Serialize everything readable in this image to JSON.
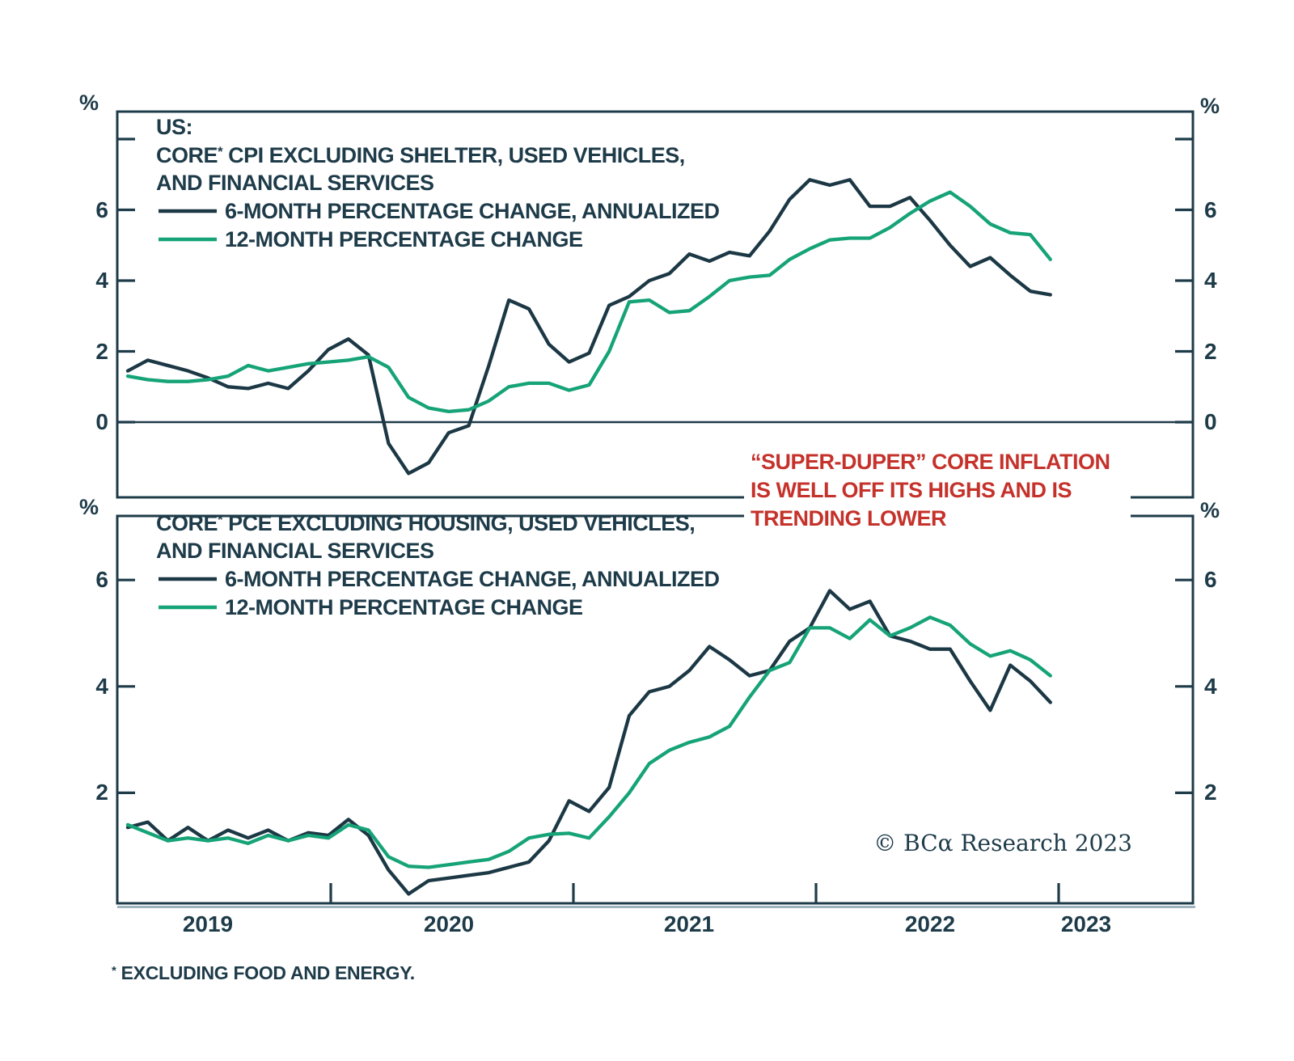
{
  "colors": {
    "text": "#1e3b49",
    "axis": "#1e3b49",
    "axis_shadow": "#9fb5bf",
    "navy_line": "#1c3845",
    "green_line": "#15a377",
    "red": "#c5322b",
    "background": "#ffffff"
  },
  "axes": {
    "percent": "%",
    "x_labels": [
      "2019",
      "2020",
      "2021",
      "2022",
      "2023"
    ]
  },
  "top_panel": {
    "region_label": "US:",
    "title_core": "CORE",
    "title_asterisk": "*",
    "title_rest": " CPI EXCLUDING SHELTER, USED VEHICLES,",
    "title_line2": "AND FINANCIAL SERVICES",
    "legend_6m": "6-MONTH PERCENTAGE CHANGE, ANNUALIZED",
    "legend_12m": "12-MONTH PERCENTAGE CHANGE"
  },
  "bottom_panel": {
    "title_core": "CORE",
    "title_asterisk": "*",
    "title_rest": " PCE EXCLUDING HOUSING, USED VEHICLES,",
    "title_line2": "AND FINANCIAL SERVICES",
    "legend_6m": "6-MONTH PERCENTAGE CHANGE, ANNUALIZED",
    "legend_12m": "12-MONTH PERCENTAGE CHANGE"
  },
  "annotation": {
    "line1": "“SUPER-DUPER” CORE INFLATION",
    "line2": "IS WELL OFF ITS HIGHS AND IS",
    "line3": "TRENDING LOWER"
  },
  "footnote": {
    "asterisk": "*",
    "text": " EXCLUDING FOOD AND ENERGY."
  },
  "copyright": "© BCα Research 2023",
  "chart_data": [
    {
      "type": "line",
      "panel": "top",
      "title": "US: CORE* CPI EXCLUDING SHELTER, USED VEHICLES, AND FINANCIAL SERVICES",
      "ylabel": "%",
      "ylim": [
        -2.1,
        8.8
      ],
      "y_ticks_labeled": [
        6,
        4,
        2,
        0
      ],
      "y_ticks_unlabeled": [
        8
      ],
      "zero_line": true,
      "grid": false,
      "legend_position": "top-left",
      "x_monthly": [
        "2019-03",
        "2019-04",
        "2019-05",
        "2019-06",
        "2019-07",
        "2019-08",
        "2019-09",
        "2019-10",
        "2019-11",
        "2019-12",
        "2020-01",
        "2020-02",
        "2020-03",
        "2020-04",
        "2020-05",
        "2020-06",
        "2020-07",
        "2020-08",
        "2020-09",
        "2020-10",
        "2020-11",
        "2020-12",
        "2021-01",
        "2021-02",
        "2021-03",
        "2021-04",
        "2021-05",
        "2021-06",
        "2021-07",
        "2021-08",
        "2021-09",
        "2021-10",
        "2021-11",
        "2021-12",
        "2022-01",
        "2022-02",
        "2022-03",
        "2022-04",
        "2022-05",
        "2022-06",
        "2022-07",
        "2022-08",
        "2022-09",
        "2022-10",
        "2022-11",
        "2022-12",
        "2023-01"
      ],
      "series": [
        {
          "name": "6-MONTH PERCENTAGE CHANGE, ANNUALIZED",
          "color": "navy",
          "values": [
            1.45,
            1.75,
            1.6,
            1.45,
            1.25,
            1.0,
            0.95,
            1.1,
            0.95,
            1.45,
            2.05,
            2.35,
            1.9,
            -0.6,
            -1.45,
            -1.15,
            -0.3,
            -0.1,
            1.6,
            3.45,
            3.2,
            2.2,
            1.7,
            1.95,
            3.3,
            3.55,
            4.0,
            4.2,
            4.75,
            4.55,
            4.8,
            4.7,
            5.4,
            6.3,
            6.85,
            6.7,
            6.85,
            6.1,
            6.1,
            6.35,
            5.7,
            5.0,
            4.4,
            4.65,
            4.15,
            3.7,
            3.6
          ]
        },
        {
          "name": "12-MONTH PERCENTAGE CHANGE",
          "color": "green",
          "values": [
            1.3,
            1.2,
            1.15,
            1.15,
            1.2,
            1.3,
            1.6,
            1.45,
            1.55,
            1.65,
            1.7,
            1.75,
            1.85,
            1.55,
            0.7,
            0.4,
            0.3,
            0.35,
            0.6,
            1.0,
            1.1,
            1.1,
            0.9,
            1.05,
            2.0,
            3.4,
            3.45,
            3.1,
            3.15,
            3.55,
            4.0,
            4.1,
            4.15,
            4.6,
            4.9,
            5.15,
            5.2,
            5.2,
            5.5,
            5.9,
            6.25,
            6.5,
            6.1,
            5.6,
            5.35,
            5.3,
            4.6
          ]
        }
      ]
    },
    {
      "type": "line",
      "panel": "bottom",
      "title": "CORE* PCE EXCLUDING HOUSING, USED VEHICLES, AND FINANCIAL SERVICES",
      "ylabel": "%",
      "ylim": [
        0,
        7.2
      ],
      "y_ticks_labeled": [
        6,
        4,
        2
      ],
      "y_ticks_unlabeled": [],
      "zero_line": false,
      "grid": false,
      "legend_position": "top-left",
      "x_monthly": [
        "2019-03",
        "2019-04",
        "2019-05",
        "2019-06",
        "2019-07",
        "2019-08",
        "2019-09",
        "2019-10",
        "2019-11",
        "2019-12",
        "2020-01",
        "2020-02",
        "2020-03",
        "2020-04",
        "2020-05",
        "2020-06",
        "2020-07",
        "2020-08",
        "2020-09",
        "2020-10",
        "2020-11",
        "2020-12",
        "2021-01",
        "2021-02",
        "2021-03",
        "2021-04",
        "2021-05",
        "2021-06",
        "2021-07",
        "2021-08",
        "2021-09",
        "2021-10",
        "2021-11",
        "2021-12",
        "2022-01",
        "2022-02",
        "2022-03",
        "2022-04",
        "2022-05",
        "2022-06",
        "2022-07",
        "2022-08",
        "2022-09",
        "2022-10",
        "2022-11",
        "2022-12",
        "2023-01"
      ],
      "series": [
        {
          "name": "6-MONTH PERCENTAGE CHANGE, ANNUALIZED",
          "color": "navy",
          "values": [
            1.35,
            1.45,
            1.1,
            1.35,
            1.1,
            1.3,
            1.15,
            1.3,
            1.1,
            1.25,
            1.2,
            1.5,
            1.2,
            0.55,
            0.1,
            0.35,
            0.4,
            0.45,
            0.5,
            0.6,
            0.7,
            1.1,
            1.85,
            1.65,
            2.1,
            3.45,
            3.9,
            4.0,
            4.3,
            4.75,
            4.5,
            4.2,
            4.3,
            4.85,
            5.1,
            5.8,
            5.45,
            5.6,
            4.95,
            4.85,
            4.7,
            4.7,
            4.1,
            3.55,
            4.4,
            4.1,
            3.7
          ]
        },
        {
          "name": "12-MONTH PERCENTAGE CHANGE",
          "color": "green",
          "values": [
            1.4,
            1.25,
            1.1,
            1.15,
            1.1,
            1.15,
            1.05,
            1.2,
            1.1,
            1.2,
            1.15,
            1.4,
            1.3,
            0.8,
            0.62,
            0.6,
            0.65,
            0.7,
            0.75,
            0.9,
            1.15,
            1.22,
            1.24,
            1.15,
            1.55,
            2.0,
            2.55,
            2.8,
            2.95,
            3.05,
            3.25,
            3.8,
            4.3,
            4.45,
            5.1,
            5.1,
            4.9,
            5.25,
            4.95,
            5.1,
            5.3,
            5.15,
            4.8,
            4.57,
            4.67,
            4.5,
            4.2
          ]
        }
      ]
    }
  ]
}
